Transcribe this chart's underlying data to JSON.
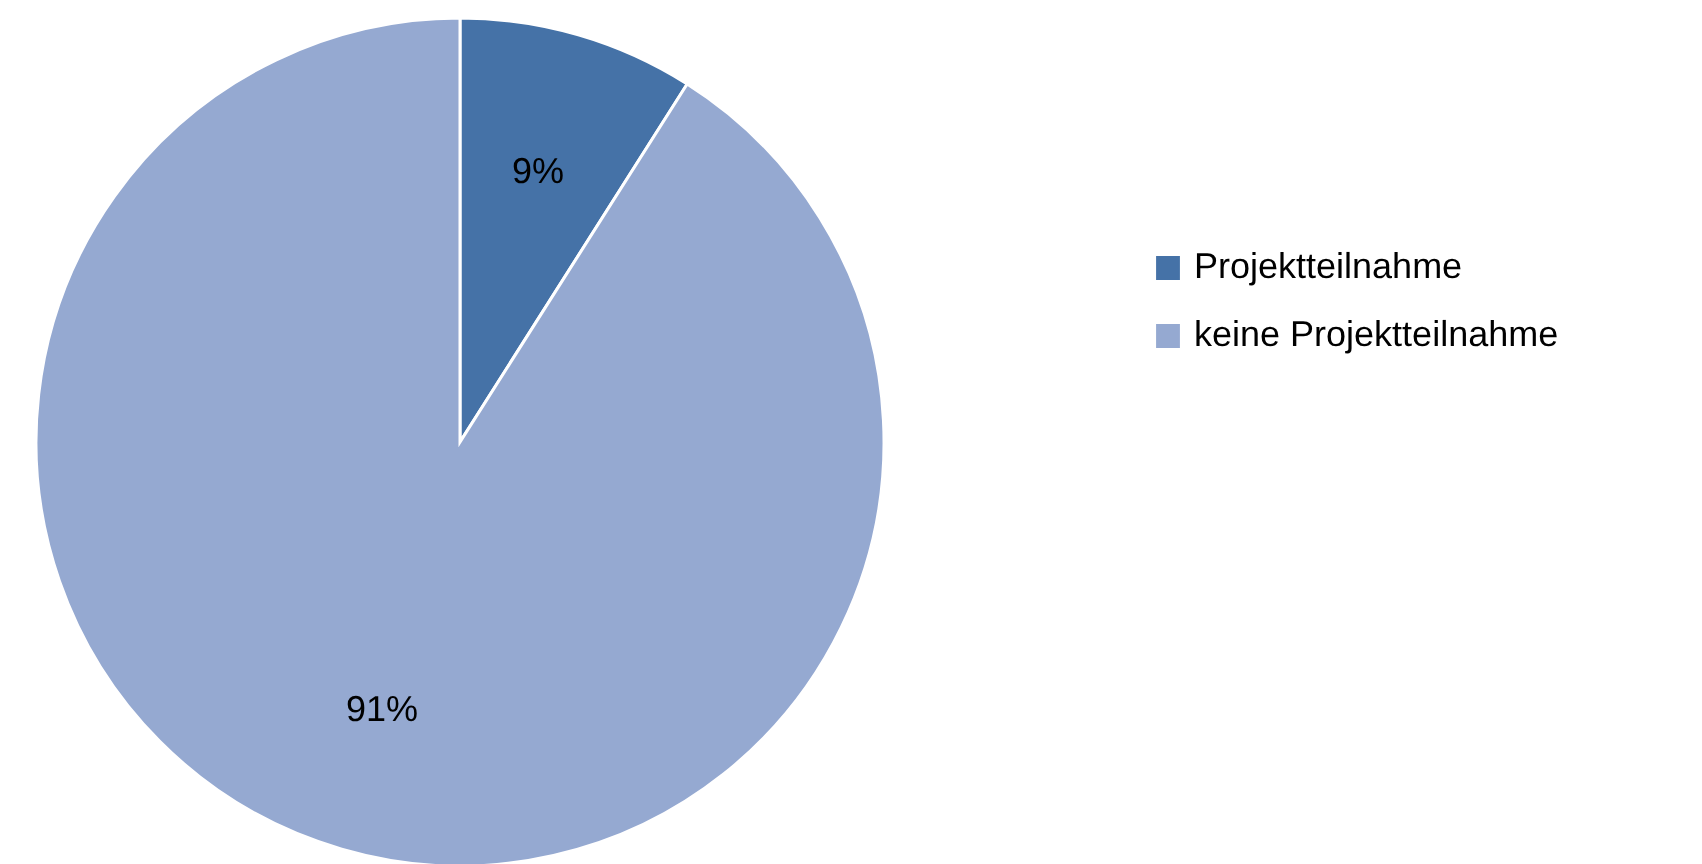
{
  "chart_data": {
    "type": "pie",
    "categories": [
      "Projektteilnahme",
      "keine Projektteilnahme"
    ],
    "values": [
      9,
      91
    ],
    "colors": [
      "#4572a7",
      "#95a9d1"
    ],
    "value_labels": [
      "9%",
      "91%"
    ],
    "legend": "right"
  }
}
